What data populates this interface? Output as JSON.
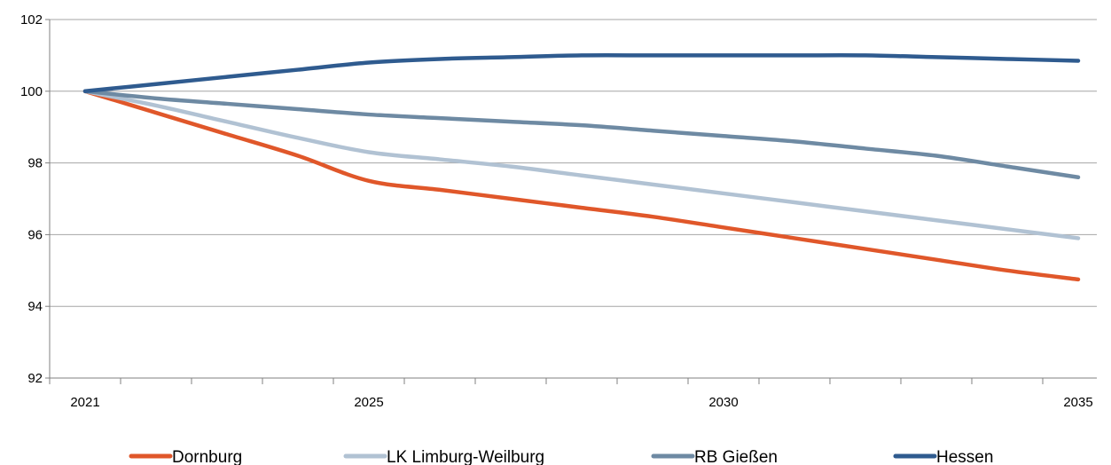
{
  "chart_data": {
    "type": "line",
    "title": "",
    "xlabel": "",
    "ylabel": "",
    "ylim": [
      92,
      102
    ],
    "yticks": [
      92,
      94,
      96,
      98,
      100,
      102
    ],
    "xlim": [
      2021,
      2035
    ],
    "xticks": [
      2021,
      2025,
      2030,
      2035
    ],
    "grid": "horizontal",
    "legend": "bottom",
    "x": [
      2021,
      2022,
      2023,
      2024,
      2025,
      2026,
      2027,
      2028,
      2029,
      2030,
      2031,
      2032,
      2033,
      2034,
      2035
    ],
    "series": [
      {
        "name": "Dornburg",
        "color": "#e0572a",
        "values": [
          100,
          99.4,
          98.8,
          98.2,
          97.5,
          97.25,
          97.0,
          96.75,
          96.5,
          96.2,
          95.9,
          95.6,
          95.3,
          95.0,
          94.75
        ]
      },
      {
        "name": "LK Limburg-Weilburg",
        "color": "#b1c2d3",
        "values": [
          100,
          99.6,
          99.15,
          98.7,
          98.3,
          98.1,
          97.9,
          97.65,
          97.4,
          97.15,
          96.9,
          96.65,
          96.4,
          96.15,
          95.9
        ]
      },
      {
        "name": "RB Gießen",
        "color": "#6e8aa3",
        "values": [
          100,
          99.8,
          99.65,
          99.5,
          99.35,
          99.25,
          99.15,
          99.05,
          98.9,
          98.75,
          98.6,
          98.4,
          98.2,
          97.9,
          97.6
        ]
      },
      {
        "name": "Hessen",
        "color": "#2f5b8f",
        "values": [
          100,
          100.2,
          100.4,
          100.6,
          100.8,
          100.9,
          100.95,
          101.0,
          101.0,
          101.0,
          101.0,
          101.0,
          100.95,
          100.9,
          100.85
        ]
      }
    ]
  }
}
